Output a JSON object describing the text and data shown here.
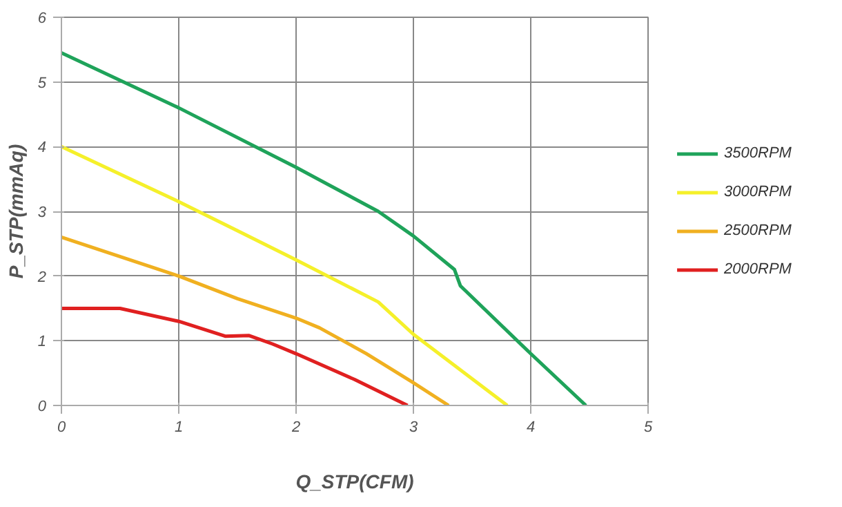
{
  "chart_data": {
    "type": "line",
    "xlabel": "Q_STP(CFM)",
    "ylabel": "P_STP(mmAq)",
    "xlim": [
      0,
      5
    ],
    "ylim": [
      0,
      6
    ],
    "xticks": [
      0,
      1,
      2,
      3,
      4,
      5
    ],
    "yticks": [
      0,
      1,
      2,
      3,
      4,
      5,
      6
    ],
    "grid": true,
    "legend": "right",
    "marker": "none",
    "line_style": "solid",
    "series": [
      {
        "name": "3500RPM",
        "color": "#1fa35a",
        "x": [
          0,
          1,
          2,
          2.7,
          3,
          3.35,
          3.4,
          4,
          4.47
        ],
        "values": [
          5.45,
          4.6,
          3.68,
          3.0,
          2.62,
          2.1,
          1.85,
          0.8,
          0
        ]
      },
      {
        "name": "3000RPM",
        "color": "#f5f02a",
        "x": [
          0,
          1,
          1.5,
          2,
          2.7,
          3,
          3.8
        ],
        "values": [
          4.0,
          3.15,
          2.7,
          2.25,
          1.6,
          1.1,
          0
        ]
      },
      {
        "name": "2500RPM",
        "color": "#f0b020",
        "x": [
          0,
          1,
          1.5,
          2,
          2.2,
          2.6,
          3,
          3.3
        ],
        "values": [
          2.6,
          2.0,
          1.65,
          1.35,
          1.2,
          0.8,
          0.35,
          0
        ]
      },
      {
        "name": "2000RPM",
        "color": "#e02020",
        "x": [
          0,
          0.5,
          1,
          1.4,
          1.6,
          1.8,
          2,
          2.5,
          2.95
        ],
        "values": [
          1.5,
          1.5,
          1.3,
          1.07,
          1.08,
          0.95,
          0.8,
          0.4,
          0
        ]
      }
    ]
  }
}
